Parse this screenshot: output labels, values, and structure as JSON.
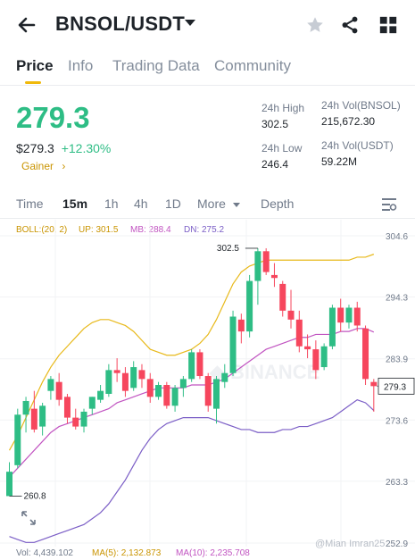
{
  "header": {
    "pair": "BNSOL/USDT"
  },
  "tabs": [
    {
      "label": "Price"
    },
    {
      "label": "Info"
    },
    {
      "label": "Trading Data"
    },
    {
      "label": "Community"
    }
  ],
  "ticker": {
    "last_price": "279.3",
    "fiat_price": "$279.3",
    "change": "+12.30%",
    "badge": "Gainer",
    "high_label": "24h High",
    "high_value": "302.5",
    "low_label": "24h Low",
    "low_value": "246.4",
    "vol_base_label": "24h Vol(BNSOL)",
    "vol_base_value": "215,672.30",
    "vol_quote_label": "24h Vol(USDT)",
    "vol_quote_value": "59.22M"
  },
  "timeframes": [
    {
      "label": "Time"
    },
    {
      "label": "15m"
    },
    {
      "label": "1h"
    },
    {
      "label": "4h"
    },
    {
      "label": "1D"
    },
    {
      "label": "More"
    },
    {
      "label": "Depth"
    }
  ],
  "indicators": {
    "boll": "BOLL:(20, 2)",
    "up": "UP: 301.5",
    "mb": "MB: 288.4",
    "dn": "DN: 275.2",
    "vol": "Vol: 4,439.102",
    "ma5": "MA(5): 2,132.873",
    "ma10": "MA(10): 2,235.708"
  },
  "colors": {
    "up": "#2ebd85",
    "down": "#f6465d",
    "boll_up": "#e8b91a",
    "boll_mb": "#c154c1",
    "boll_dn": "#7b5ec6",
    "accent": "#f0b90b"
  },
  "watermark": "@Mian Imran25",
  "chart_data": {
    "type": "candlestick",
    "y_ticks": [
      "304.6",
      "294.3",
      "283.9",
      "273.6",
      "263.3",
      "252.9"
    ],
    "y_tick_values": [
      304.6,
      294.3,
      283.9,
      273.6,
      263.3,
      252.9
    ],
    "ylim": [
      252.9,
      304.6
    ],
    "last_price_label": "279.3",
    "last_price": 279.3,
    "high_marker": "302.5",
    "low_marker": "260.8",
    "candles": [
      [
        260.8,
        266.5,
        260.8,
        264.9
      ],
      [
        266.0,
        275.5,
        265.5,
        274.5
      ],
      [
        274.5,
        277.5,
        271.5,
        276.8
      ],
      [
        275.5,
        278.5,
        271.5,
        272.0
      ],
      [
        272.5,
        276.5,
        271.0,
        276.0
      ],
      [
        278.5,
        281.0,
        277.0,
        280.5
      ],
      [
        280.0,
        281.5,
        276.0,
        277.0
      ],
      [
        277.5,
        278.0,
        273.0,
        274.0
      ],
      [
        274.0,
        275.5,
        272.0,
        272.5
      ],
      [
        272.5,
        275.5,
        271.5,
        275.0
      ],
      [
        275.5,
        277.5,
        274.5,
        277.5
      ],
      [
        277.0,
        279.5,
        276.5,
        278.5
      ],
      [
        278.0,
        283.0,
        277.5,
        282.0
      ],
      [
        282.0,
        284.0,
        280.0,
        281.5
      ],
      [
        281.5,
        282.5,
        277.5,
        278.5
      ],
      [
        279.0,
        283.5,
        278.5,
        282.5
      ],
      [
        282.0,
        283.0,
        279.0,
        280.5
      ],
      [
        280.5,
        281.5,
        276.5,
        277.5
      ],
      [
        277.5,
        280.0,
        277.0,
        279.5
      ],
      [
        279.5,
        280.0,
        275.5,
        276.0
      ],
      [
        276.0,
        279.5,
        275.0,
        279.0
      ],
      [
        279.0,
        281.0,
        277.5,
        280.5
      ],
      [
        280.5,
        285.5,
        280.0,
        285.0
      ],
      [
        285.0,
        285.5,
        280.5,
        281.0
      ],
      [
        281.0,
        281.5,
        275.0,
        276.0
      ],
      [
        275.5,
        281.0,
        273.0,
        280.5
      ],
      [
        280.0,
        283.0,
        279.0,
        281.5
      ],
      [
        281.5,
        292.0,
        281.0,
        291.0
      ],
      [
        290.5,
        291.5,
        286.5,
        288.5
      ],
      [
        288.5,
        298.0,
        287.5,
        297.0
      ],
      [
        297.0,
        302.5,
        293.0,
        302.0
      ],
      [
        302.0,
        302.5,
        298.0,
        298.5
      ],
      [
        298.0,
        300.0,
        296.0,
        297.5
      ],
      [
        296.5,
        297.0,
        291.0,
        292.0
      ],
      [
        292.0,
        295.5,
        289.0,
        290.5
      ],
      [
        290.5,
        292.0,
        285.0,
        286.0
      ],
      [
        286.0,
        288.0,
        284.0,
        285.5
      ],
      [
        285.5,
        287.0,
        280.5,
        282.0
      ],
      [
        282.5,
        286.5,
        282.0,
        286.0
      ],
      [
        286.0,
        293.0,
        285.5,
        292.5
      ],
      [
        292.5,
        294.0,
        288.5,
        290.0
      ],
      [
        290.0,
        293.0,
        289.0,
        292.5
      ],
      [
        292.5,
        293.5,
        288.5,
        289.5
      ],
      [
        289.0,
        289.5,
        279.5,
        280.5
      ],
      [
        280.0,
        280.5,
        275.0,
        279.3
      ]
    ],
    "boll_up": [
      268.5,
      271.0,
      274.0,
      277.0,
      280.0,
      282.5,
      284.5,
      286.0,
      287.5,
      289.0,
      290.0,
      290.5,
      290.5,
      290.0,
      289.5,
      288.5,
      287.0,
      285.5,
      285.0,
      284.5,
      284.5,
      285.0,
      285.5,
      286.5,
      288.0,
      290.5,
      293.5,
      296.5,
      298.5,
      299.5,
      300.0,
      300.5,
      300.5,
      300.5,
      300.5,
      300.5,
      300.5,
      300.5,
      300.5,
      300.5,
      300.5,
      300.5,
      301.0,
      301.0,
      301.5
    ],
    "boll_mb": [
      264.0,
      265.5,
      267.0,
      268.5,
      270.0,
      271.5,
      272.5,
      273.0,
      273.5,
      274.0,
      274.5,
      275.0,
      275.5,
      276.5,
      277.0,
      277.5,
      278.0,
      278.5,
      279.0,
      279.0,
      279.0,
      279.0,
      279.5,
      279.5,
      279.5,
      280.0,
      280.5,
      281.5,
      282.5,
      283.5,
      284.5,
      285.5,
      286.0,
      286.5,
      287.0,
      287.5,
      287.5,
      288.0,
      288.0,
      288.0,
      288.5,
      288.5,
      289.0,
      289.0,
      288.4
    ],
    "boll_dn": [
      254.0,
      253.5,
      253.0,
      253.0,
      253.5,
      254.0,
      254.5,
      255.0,
      255.5,
      256.0,
      257.0,
      258.0,
      259.5,
      261.5,
      263.5,
      266.0,
      268.5,
      270.5,
      272.0,
      273.0,
      273.5,
      274.0,
      274.0,
      274.0,
      274.0,
      273.5,
      273.0,
      272.5,
      272.0,
      272.0,
      271.5,
      271.5,
      271.5,
      272.0,
      272.0,
      272.5,
      272.5,
      273.0,
      273.5,
      274.0,
      275.0,
      276.0,
      277.0,
      276.5,
      275.2
    ]
  }
}
